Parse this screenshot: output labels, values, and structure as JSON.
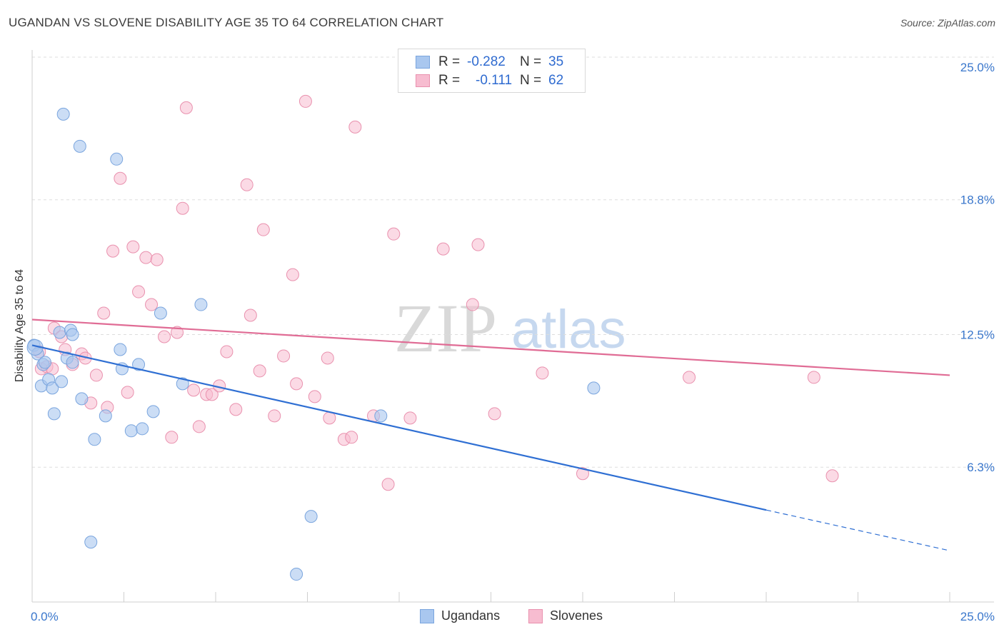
{
  "title": "UGANDAN VS SLOVENE DISABILITY AGE 35 TO 64 CORRELATION CHART",
  "source": "Source: ZipAtlas.com",
  "watermark": {
    "part1": "ZIP",
    "part2": "atlas"
  },
  "legend": {
    "rows": [
      {
        "r_label": "R =",
        "r_value": "-0.282",
        "n_label": "N =",
        "n_value": "35"
      },
      {
        "r_label": "R =",
        "r_value": "-0.111",
        "n_label": "N =",
        "n_value": "62"
      }
    ]
  },
  "bottom_legend": [
    "Ugandans",
    "Slovenes"
  ],
  "colors": {
    "ugandans_fill": "#a9c7ef",
    "ugandans_stroke": "#7aa5de",
    "ugandans_line": "#2f6fd3",
    "slovenes_fill": "#f7bcd0",
    "slovenes_stroke": "#e991ae",
    "slovenes_line": "#e06c95",
    "tick_label": "#3a77cc",
    "grid": "#dddddd"
  },
  "chart_data": {
    "type": "scatter",
    "title": "UGANDAN VS SLOVENE DISABILITY AGE 35 TO 64 CORRELATION CHART",
    "xlabel": "",
    "ylabel": "Disability Age 35 to 64",
    "xlim": [
      0,
      25
    ],
    "ylim": [
      0,
      25.8
    ],
    "x_tick_labels": [
      "0.0%",
      "25.0%"
    ],
    "y_ticks": [
      6.3,
      12.5,
      18.8,
      25.0
    ],
    "y_tick_labels": [
      "6.3%",
      "12.5%",
      "18.8%",
      "25.0%"
    ],
    "grid": true,
    "legend_position": "top-center",
    "series": [
      {
        "name": "Ugandans",
        "points": [
          [
            0.05,
            12.0
          ],
          [
            0.15,
            11.6
          ],
          [
            0.3,
            11.1
          ],
          [
            0.35,
            11.2
          ],
          [
            0.25,
            10.1
          ],
          [
            0.45,
            10.4
          ],
          [
            0.55,
            10.0
          ],
          [
            0.6,
            8.8
          ],
          [
            0.75,
            12.6
          ],
          [
            0.8,
            10.3
          ],
          [
            0.85,
            22.8
          ],
          [
            0.95,
            11.4
          ],
          [
            1.05,
            12.7
          ],
          [
            1.1,
            11.2
          ],
          [
            1.1,
            12.5
          ],
          [
            1.3,
            21.3
          ],
          [
            1.35,
            9.5
          ],
          [
            1.7,
            7.6
          ],
          [
            1.6,
            2.8
          ],
          [
            2.0,
            8.7
          ],
          [
            2.3,
            20.7
          ],
          [
            2.4,
            11.8
          ],
          [
            2.45,
            10.9
          ],
          [
            2.7,
            8.0
          ],
          [
            2.9,
            11.1
          ],
          [
            3.0,
            8.1
          ],
          [
            3.3,
            8.9
          ],
          [
            3.5,
            13.5
          ],
          [
            4.1,
            10.2
          ],
          [
            4.6,
            13.9
          ],
          [
            7.6,
            4.0
          ],
          [
            7.2,
            1.3
          ],
          [
            9.5,
            8.7
          ],
          [
            15.3,
            10.0
          ],
          [
            0.08,
            11.9
          ]
        ],
        "trend": {
          "x0": 0,
          "y0": 12.0,
          "x1": 20.0,
          "y1": 4.3,
          "dash_to_x": 25.0,
          "dash_to_y": 2.4
        }
      },
      {
        "name": "Slovenes",
        "points": [
          [
            0.2,
            11.7
          ],
          [
            0.25,
            10.9
          ],
          [
            0.4,
            11.0
          ],
          [
            0.55,
            10.9
          ],
          [
            0.6,
            12.8
          ],
          [
            0.8,
            12.4
          ],
          [
            0.9,
            11.8
          ],
          [
            1.1,
            11.1
          ],
          [
            1.35,
            11.6
          ],
          [
            1.45,
            11.4
          ],
          [
            1.6,
            9.3
          ],
          [
            1.75,
            10.6
          ],
          [
            1.95,
            13.5
          ],
          [
            2.05,
            9.1
          ],
          [
            2.2,
            16.4
          ],
          [
            2.4,
            19.8
          ],
          [
            2.6,
            9.8
          ],
          [
            2.75,
            16.6
          ],
          [
            2.9,
            14.5
          ],
          [
            3.1,
            16.1
          ],
          [
            3.25,
            13.9
          ],
          [
            3.4,
            16.0
          ],
          [
            3.6,
            12.4
          ],
          [
            3.8,
            7.7
          ],
          [
            3.95,
            12.6
          ],
          [
            4.1,
            18.4
          ],
          [
            4.2,
            23.1
          ],
          [
            4.4,
            9.9
          ],
          [
            4.55,
            8.2
          ],
          [
            4.75,
            9.7
          ],
          [
            4.9,
            9.7
          ],
          [
            5.1,
            10.1
          ],
          [
            5.3,
            11.7
          ],
          [
            5.55,
            9.0
          ],
          [
            5.85,
            19.5
          ],
          [
            5.95,
            13.4
          ],
          [
            6.2,
            10.8
          ],
          [
            6.3,
            17.4
          ],
          [
            6.6,
            8.7
          ],
          [
            6.85,
            11.5
          ],
          [
            7.1,
            15.3
          ],
          [
            7.2,
            10.2
          ],
          [
            7.45,
            23.4
          ],
          [
            7.7,
            9.6
          ],
          [
            8.1,
            8.6
          ],
          [
            8.05,
            11.4
          ],
          [
            8.5,
            7.6
          ],
          [
            8.7,
            7.7
          ],
          [
            8.8,
            22.2
          ],
          [
            9.3,
            8.7
          ],
          [
            9.7,
            5.5
          ],
          [
            9.85,
            17.2
          ],
          [
            10.3,
            8.6
          ],
          [
            11.2,
            16.5
          ],
          [
            12.0,
            13.9
          ],
          [
            12.15,
            16.7
          ],
          [
            12.6,
            8.8
          ],
          [
            13.9,
            10.7
          ],
          [
            15.0,
            6.0
          ],
          [
            17.9,
            10.5
          ],
          [
            21.3,
            10.5
          ],
          [
            21.8,
            5.9
          ]
        ],
        "trend": {
          "x0": 0,
          "y0": 13.2,
          "x1": 25.0,
          "y1": 10.6
        }
      }
    ]
  }
}
